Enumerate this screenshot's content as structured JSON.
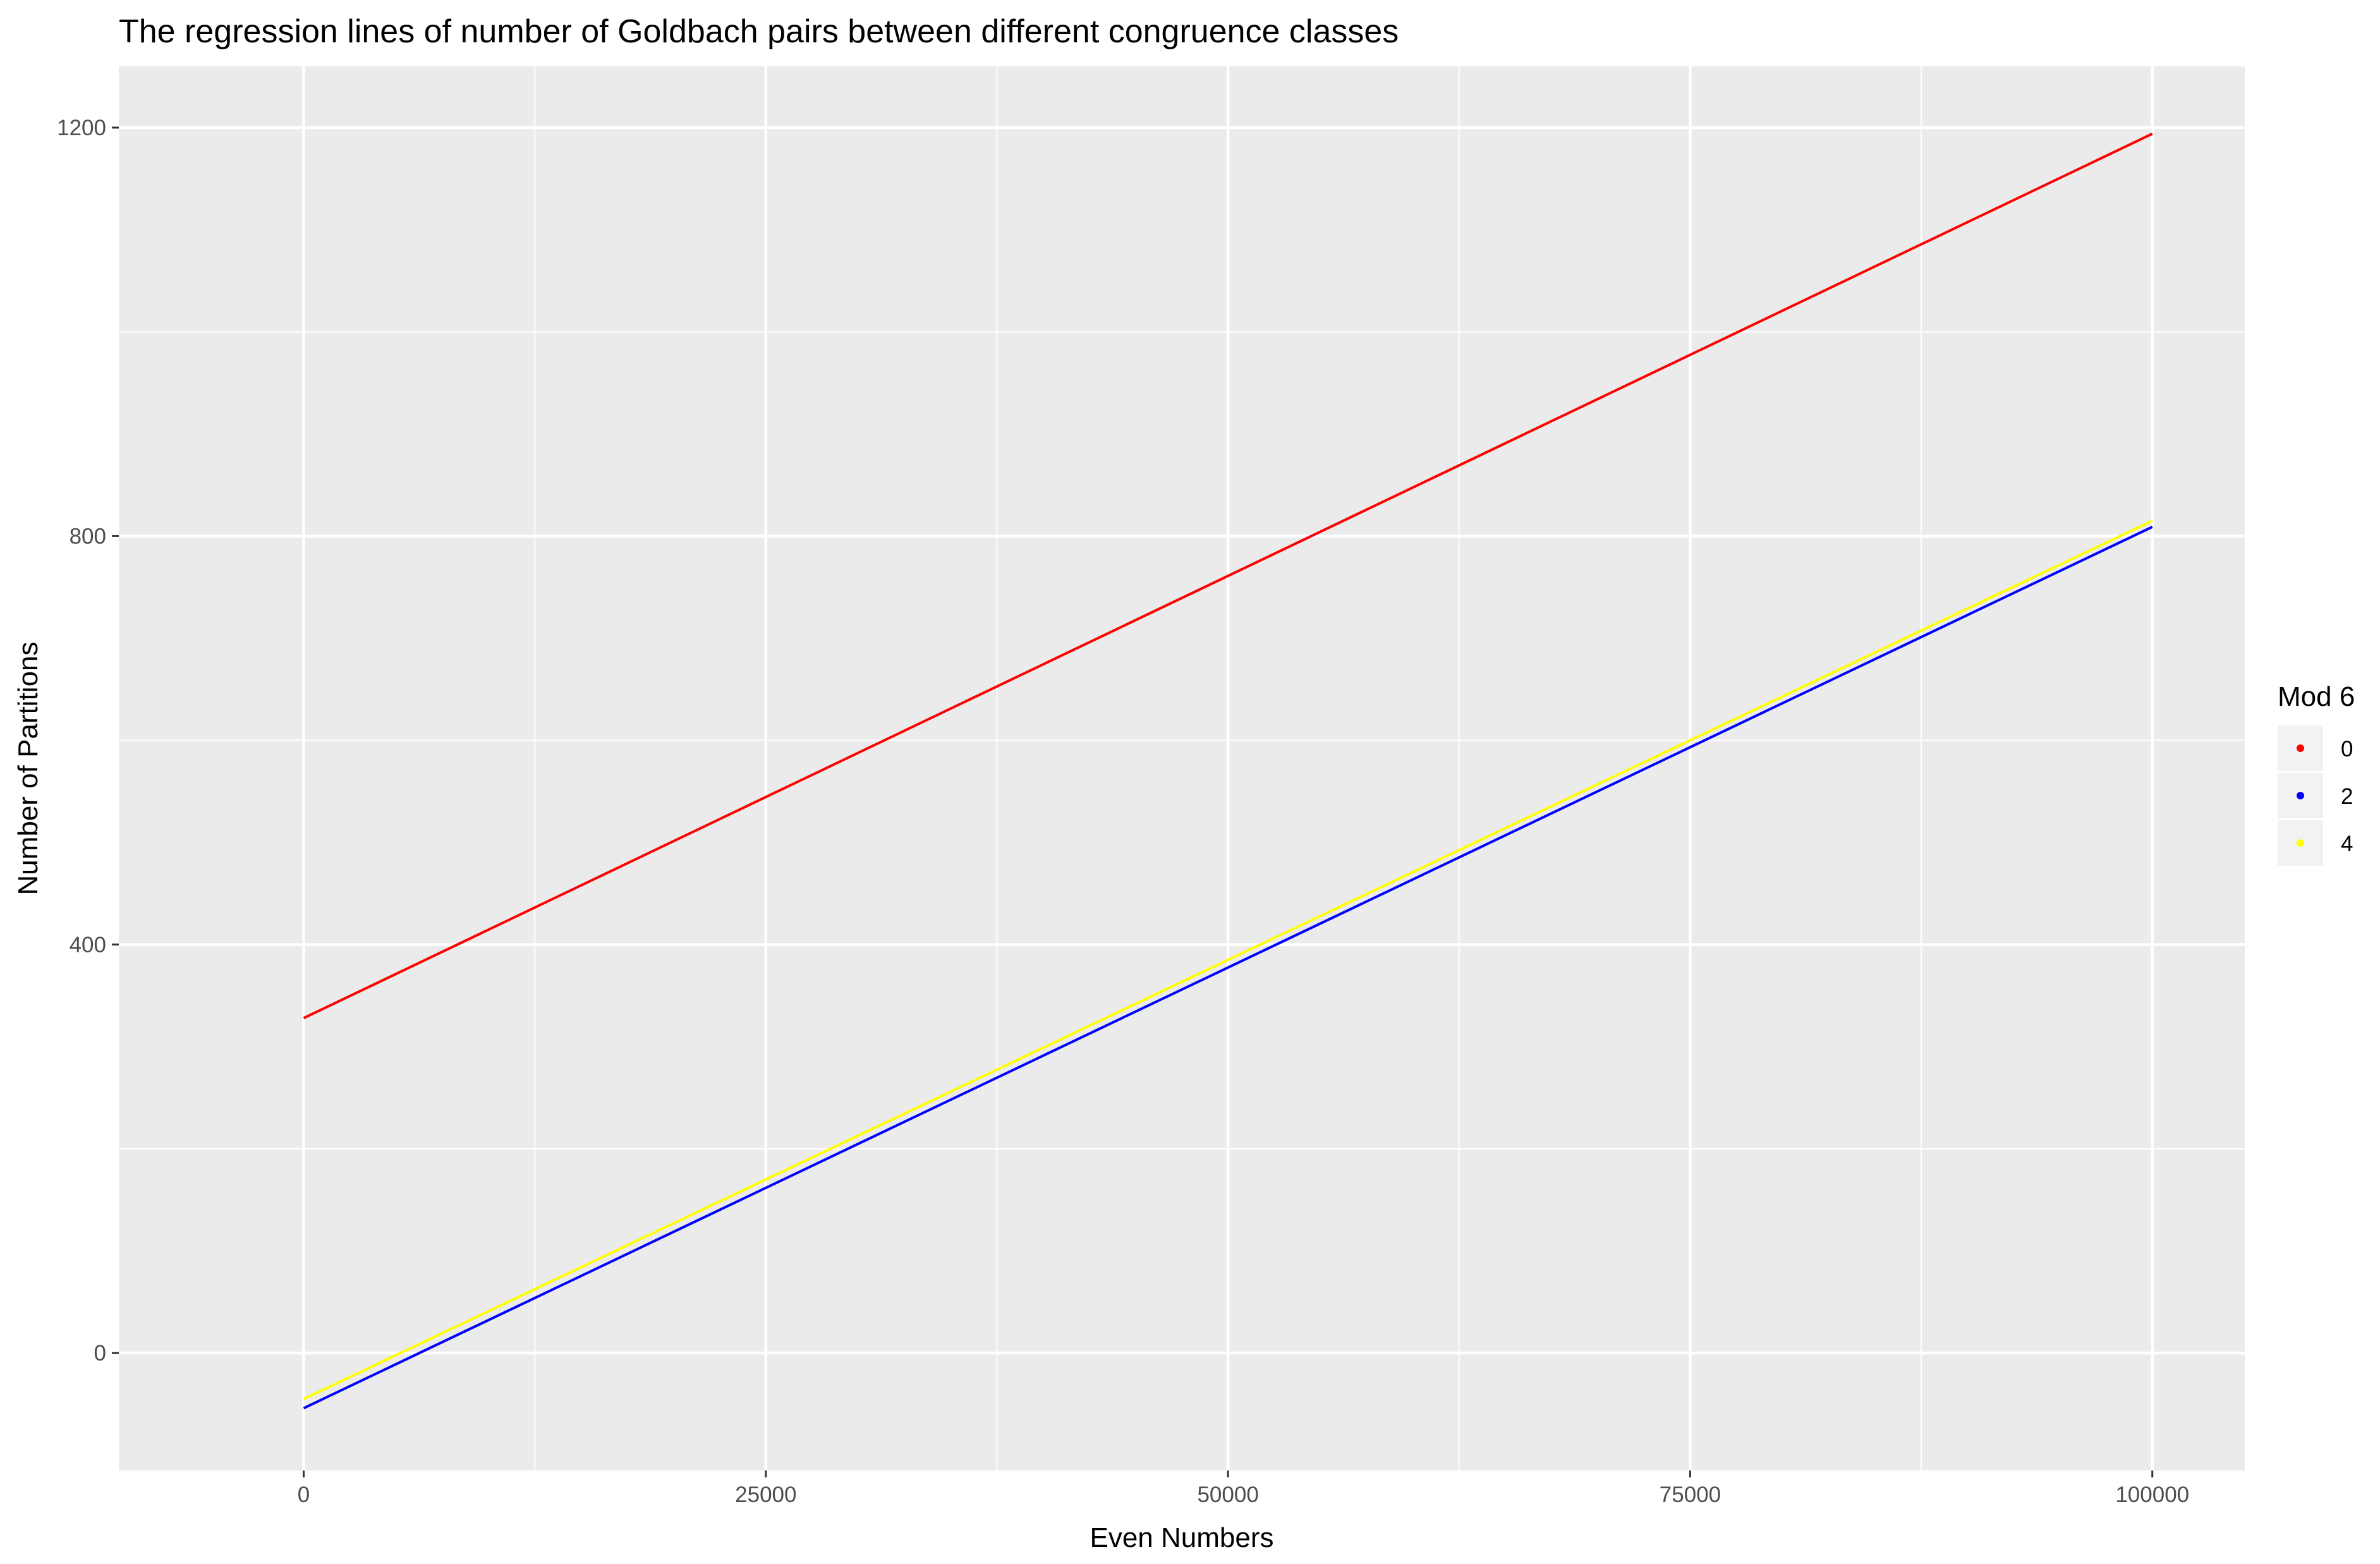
{
  "chart_data": {
    "type": "line",
    "title": "The regression lines of number of Goldbach pairs between different congruence classes",
    "xlabel": "Even Numbers",
    "ylabel": "Number of Partitions",
    "xlim": [
      -10000,
      105000
    ],
    "ylim": [
      -115,
      1260
    ],
    "x_ticks": [
      0,
      25000,
      50000,
      75000,
      100000
    ],
    "x_tick_labels": [
      "0",
      "25000",
      "50000",
      "75000",
      "100000"
    ],
    "y_ticks": [
      0,
      400,
      800,
      1200
    ],
    "y_tick_labels": [
      "0",
      "400",
      "800",
      "1200"
    ],
    "grid": true,
    "legend": {
      "title": "Mod 6",
      "placement": "right",
      "entries": [
        {
          "label": "0",
          "color": "#ff0000"
        },
        {
          "label": "2",
          "color": "#0000ff"
        },
        {
          "label": "4",
          "color": "#ffff00"
        }
      ]
    },
    "series": [
      {
        "name": "0",
        "color": "#ff0000",
        "x": [
          0,
          100000
        ],
        "y": [
          328,
          1194
        ]
      },
      {
        "name": "4",
        "color": "#ffff00",
        "x": [
          0,
          100000
        ],
        "y": [
          -45,
          815
        ]
      },
      {
        "name": "2",
        "color": "#0000ff",
        "x": [
          0,
          100000
        ],
        "y": [
          -54,
          809
        ]
      }
    ]
  }
}
